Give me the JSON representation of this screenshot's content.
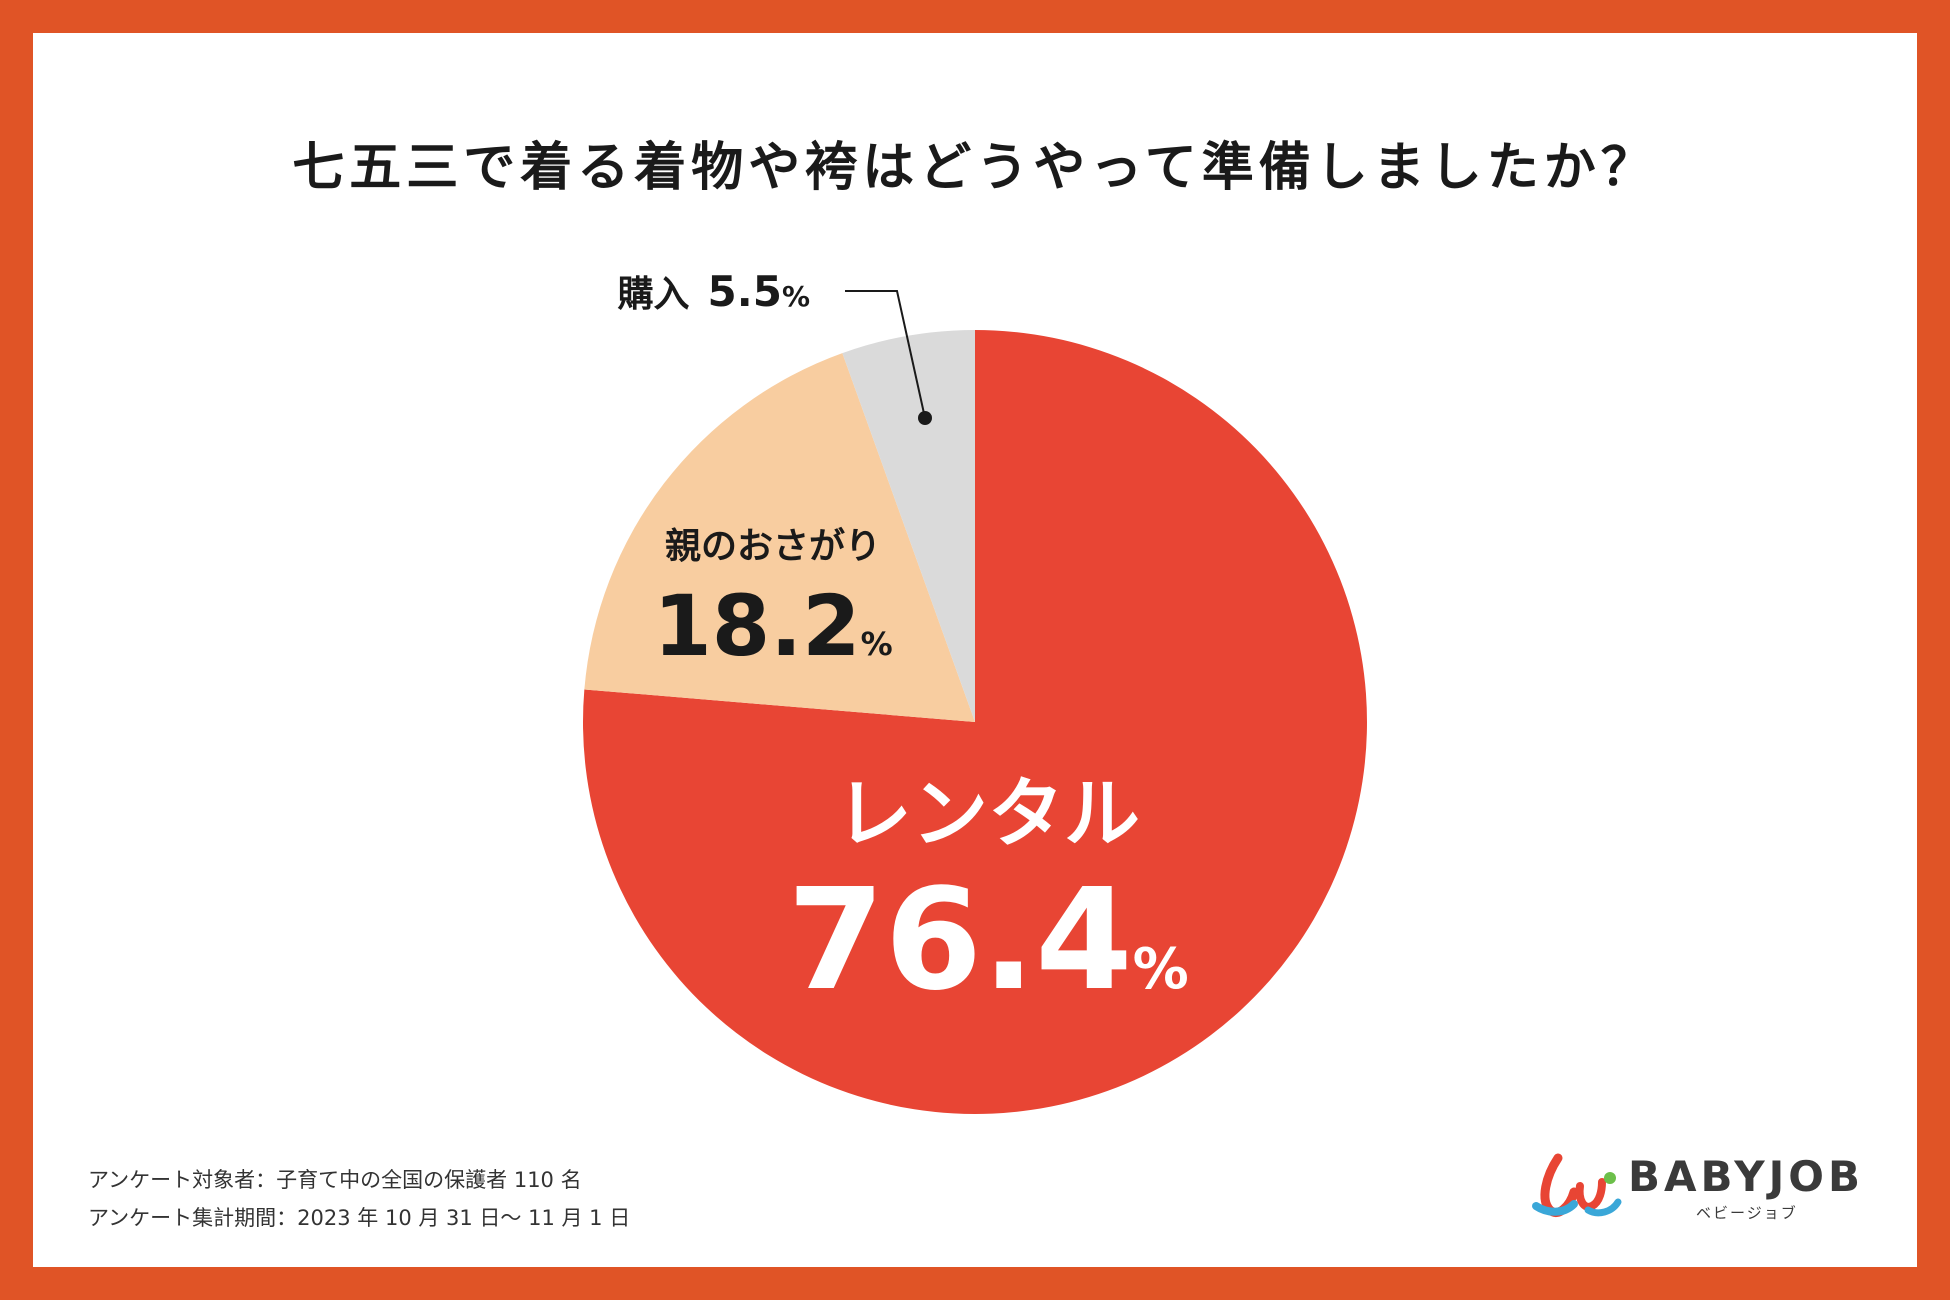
{
  "title": "七五三で着る着物や袴はどうやって準備しましたか？",
  "chart_data": {
    "type": "pie",
    "title": "七五三で着る着物や袴はどうやって準備しましたか？",
    "slices": [
      {
        "label": "レンタル",
        "value": 76.4,
        "value_text": "76.4",
        "unit": "%",
        "color": "#e84534",
        "label_color": "#ffffff"
      },
      {
        "label": "親のおさがり",
        "value": 18.2,
        "value_text": "18.2",
        "unit": "%",
        "color": "#f8cda0",
        "label_color": "#1a1a1a"
      },
      {
        "label": "購入",
        "value": 5.5,
        "value_text": "5.5",
        "unit": "%",
        "color": "#dadada",
        "label_color": "#1a1a1a"
      }
    ],
    "start_angle_deg": 0,
    "direction": "clockwise"
  },
  "footnotes": {
    "target": "アンケート対象者：子育て中の全国の保護者 110 名",
    "period": "アンケート集計期間：2023 年 10 月 31 日〜 11 月 1 日"
  },
  "logo": {
    "text": "BABYJOB",
    "subtext": "ベビージョブ",
    "colors": [
      "#e84534",
      "#3aa7d8",
      "#6cbf4a"
    ]
  },
  "colors": {
    "border": "#e05426",
    "background": "#ffffff"
  }
}
